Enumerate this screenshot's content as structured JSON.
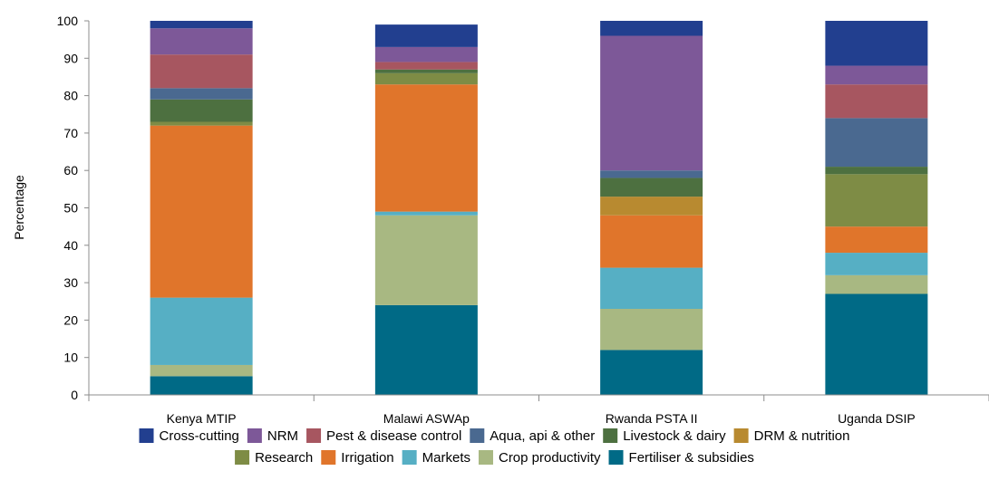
{
  "chart_data": {
    "type": "bar",
    "stacked": true,
    "ylabel": "Percentage",
    "xlabel": "",
    "ylim": [
      0,
      100
    ],
    "yticks": [
      0,
      10,
      20,
      30,
      40,
      50,
      60,
      70,
      80,
      90,
      100
    ],
    "grid": false,
    "legend_position": "bottom",
    "categories": [
      "Kenya MTIP",
      "Malawi ASWAp",
      "Rwanda PSTA II",
      "Uganda DSIP"
    ],
    "series": [
      {
        "name": "Fertiliser & subsidies",
        "color": "#006a86",
        "values": [
          5,
          24,
          12,
          27
        ]
      },
      {
        "name": "Crop productivity",
        "color": "#a8b882",
        "values": [
          3,
          24,
          11,
          5
        ]
      },
      {
        "name": "Markets",
        "color": "#56afc4",
        "values": [
          18,
          1,
          11,
          6
        ]
      },
      {
        "name": "Irrigation",
        "color": "#e0752b",
        "values": [
          46,
          34,
          14,
          7
        ]
      },
      {
        "name": "Research",
        "color": "#7e8c45",
        "values": [
          1,
          3,
          0,
          14
        ]
      },
      {
        "name": "DRM & nutrition",
        "color": "#b88a30",
        "values": [
          0,
          0,
          5,
          0
        ]
      },
      {
        "name": "Livestock & dairy",
        "color": "#4d7040",
        "values": [
          6,
          1,
          5,
          2
        ]
      },
      {
        "name": "Aqua, api & other",
        "color": "#4a6990",
        "values": [
          3,
          0,
          2,
          13
        ]
      },
      {
        "name": "Pest & disease control",
        "color": "#a75660",
        "values": [
          9,
          2,
          0,
          9
        ]
      },
      {
        "name": "NRM",
        "color": "#7d5898",
        "values": [
          7,
          4,
          36,
          5
        ]
      },
      {
        "name": "Cross-cutting",
        "color": "#223f8f",
        "values": [
          2,
          6,
          4,
          12
        ]
      }
    ],
    "legend_order": [
      "Cross-cutting",
      "NRM",
      "Pest & disease control",
      "Aqua, api & other",
      "Livestock & dairy",
      "DRM & nutrition",
      "Research",
      "Irrigation",
      "Markets",
      "Crop productivity",
      "Fertiliser & subsidies"
    ]
  }
}
